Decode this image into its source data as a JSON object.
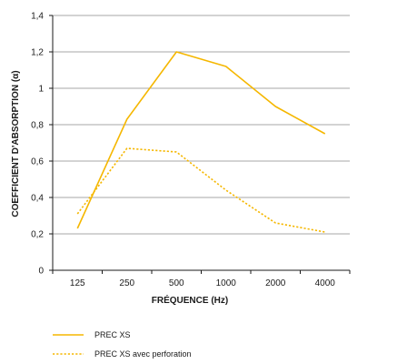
{
  "chart_data": {
    "type": "line",
    "xlabel": "FRÉQUENCE (Hz)",
    "ylabel": "COEFFICIENT D'ABSORPTION (α)",
    "categories": [
      "125",
      "250",
      "500",
      "1000",
      "2000",
      "4000"
    ],
    "y_tick_labels": [
      "0",
      "0,2",
      "0,4",
      "0,6",
      "0,8",
      "1",
      "1,2",
      "1,4"
    ],
    "ylim": [
      0,
      1.4
    ],
    "y_ticks": [
      0,
      0.2,
      0.4,
      0.6,
      0.8,
      1.0,
      1.2,
      1.4
    ],
    "grid": "horizontal",
    "legend_position": "bottom-left",
    "series": [
      {
        "name": "PREC XS",
        "values": [
          0.23,
          0.83,
          1.2,
          1.12,
          0.9,
          0.75
        ],
        "color": "#f5b700",
        "style": "solid"
      },
      {
        "name": "PREC XS avec perforation",
        "values": [
          0.31,
          0.67,
          0.65,
          0.44,
          0.26,
          0.21
        ],
        "color": "#f5b700",
        "style": "dotted"
      }
    ]
  }
}
